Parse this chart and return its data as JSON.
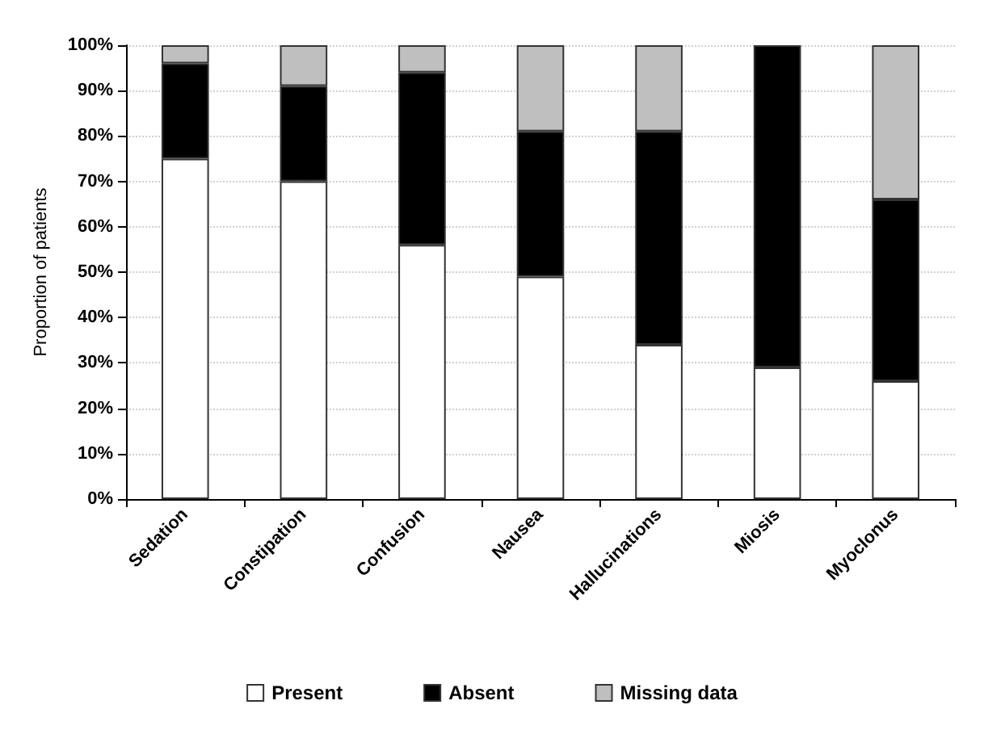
{
  "chart_data": {
    "type": "bar",
    "stacked": true,
    "ylabel": "Proportion of patients",
    "categories": [
      "Sedation",
      "Constipation",
      "Confusion",
      "Nausea",
      "Hallucinations",
      "Miosis",
      "Myoclonus"
    ],
    "series": [
      {
        "name": "Present",
        "color": "#ffffff",
        "values": [
          75,
          70,
          56,
          49,
          34,
          29,
          26
        ]
      },
      {
        "name": "Absent",
        "color": "#000000",
        "values": [
          21,
          21,
          38,
          32,
          47,
          71,
          40
        ]
      },
      {
        "name": "Missing data",
        "color": "#bfbfbf",
        "values": [
          4,
          9,
          6,
          19,
          19,
          null,
          34
        ]
      }
    ],
    "ylim": [
      0,
      100
    ],
    "yticks": [
      {
        "value": 0,
        "label": "0%"
      },
      {
        "value": 10,
        "label": "10%"
      },
      {
        "value": 20,
        "label": "20%"
      },
      {
        "value": 30,
        "label": "30%"
      },
      {
        "value": 40,
        "label": "40%"
      },
      {
        "value": 50,
        "label": "50%"
      },
      {
        "value": 60,
        "label": "60%"
      },
      {
        "value": 70,
        "label": "70%"
      },
      {
        "value": 80,
        "label": "80%"
      },
      {
        "value": 90,
        "label": "90%"
      },
      {
        "value": 100,
        "label": "100%"
      }
    ],
    "grid": "y",
    "legend": "bottom"
  }
}
